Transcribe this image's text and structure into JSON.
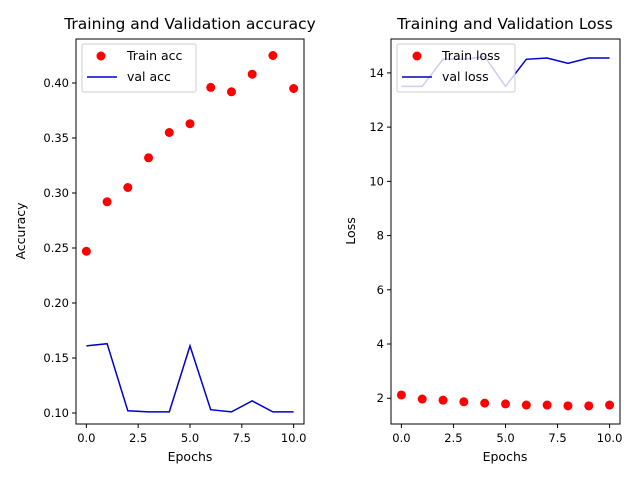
{
  "chart_data": [
    {
      "type": "line",
      "title": "Training and Validation accuracy",
      "xlabel": "Epochs",
      "ylabel": "Accuracy",
      "xlim": [
        -0.5,
        10.5
      ],
      "ylim": [
        0.09,
        0.44
      ],
      "xticks": [
        0.0,
        2.5,
        5.0,
        7.5,
        10.0
      ],
      "xtick_labels": [
        "0.0",
        "2.5",
        "5.0",
        "7.5",
        "10.0"
      ],
      "yticks": [
        0.1,
        0.15,
        0.2,
        0.25,
        0.3,
        0.35,
        0.4
      ],
      "ytick_labels": [
        "0.10",
        "0.15",
        "0.20",
        "0.25",
        "0.30",
        "0.35",
        "0.40"
      ],
      "grid": false,
      "legend_position": "top-left",
      "x": [
        0,
        1,
        2,
        3,
        4,
        5,
        6,
        7,
        8,
        9,
        10
      ],
      "series": [
        {
          "name": "Train acc",
          "style": "markers",
          "color": "#ff0000",
          "values": [
            0.247,
            0.292,
            0.305,
            0.332,
            0.355,
            0.363,
            0.396,
            0.392,
            0.408,
            0.425,
            0.395
          ]
        },
        {
          "name": "val acc",
          "style": "line",
          "color": "#0000cc",
          "values": [
            0.161,
            0.163,
            0.102,
            0.101,
            0.101,
            0.161,
            0.103,
            0.101,
            0.111,
            0.101,
            0.101
          ]
        }
      ]
    },
    {
      "type": "line",
      "title": "Training and Validation Loss",
      "xlabel": "Epochs",
      "ylabel": "Loss",
      "xlim": [
        -0.5,
        10.5
      ],
      "ylim": [
        1.05,
        15.25
      ],
      "xticks": [
        0.0,
        2.5,
        5.0,
        7.5,
        10.0
      ],
      "xtick_labels": [
        "0.0",
        "2.5",
        "5.0",
        "7.5",
        "10.0"
      ],
      "yticks": [
        2,
        4,
        6,
        8,
        10,
        12,
        14
      ],
      "ytick_labels": [
        "2",
        "4",
        "6",
        "8",
        "10",
        "12",
        "14"
      ],
      "grid": false,
      "legend_position": "top-left",
      "x": [
        0,
        1,
        2,
        3,
        4,
        5,
        6,
        7,
        8,
        9,
        10
      ],
      "series": [
        {
          "name": "Train loss",
          "style": "markers",
          "color": "#ff0000",
          "values": [
            2.12,
            1.97,
            1.93,
            1.87,
            1.82,
            1.79,
            1.75,
            1.75,
            1.72,
            1.72,
            1.75
          ]
        },
        {
          "name": "val loss",
          "style": "line",
          "color": "#0000cc",
          "values": [
            13.5,
            13.5,
            14.5,
            14.5,
            14.6,
            13.5,
            14.5,
            14.55,
            14.35,
            14.55,
            14.55
          ]
        }
      ]
    }
  ]
}
